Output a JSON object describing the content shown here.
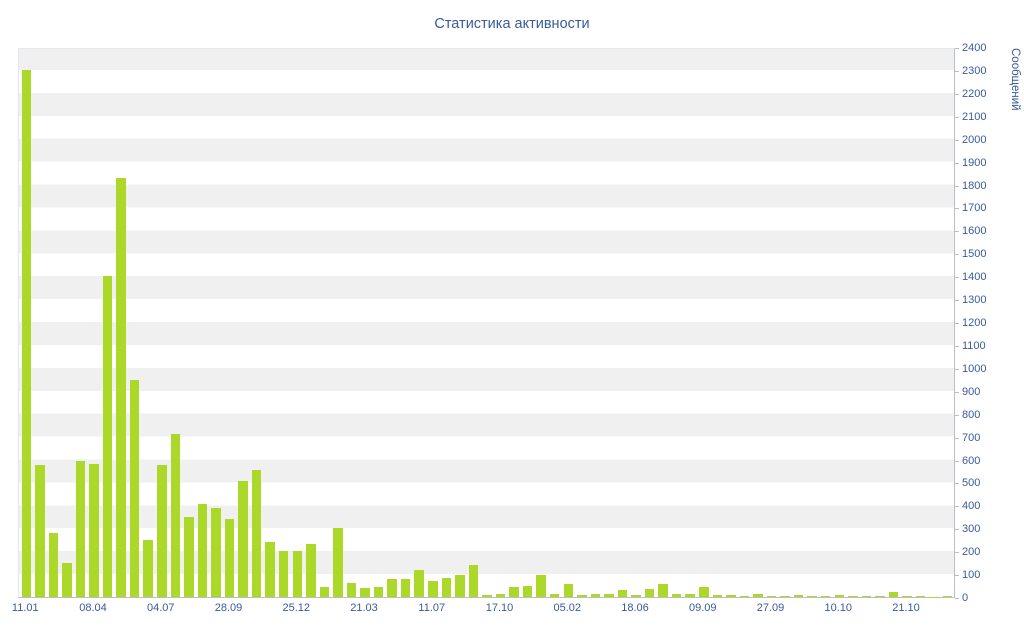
{
  "chart_data": {
    "type": "bar",
    "title": "Статистика активности",
    "ylabel": "Сообщений",
    "xlabel": "",
    "ylim": [
      0,
      2400
    ],
    "ytick_step": 100,
    "x_tick_labels": [
      "11.01",
      "08.04",
      "04.07",
      "28.09",
      "25.12",
      "21.03",
      "11.07",
      "17.10",
      "05.02",
      "18.06",
      "09.09",
      "27.09",
      "10.10",
      "21.10"
    ],
    "x_tick_every": 5,
    "grid": "horizontal-bands-every-100",
    "legend": "none",
    "values": [
      2300,
      575,
      280,
      150,
      595,
      580,
      1400,
      1830,
      945,
      250,
      575,
      710,
      350,
      405,
      390,
      340,
      505,
      555,
      240,
      200,
      200,
      230,
      45,
      300,
      60,
      40,
      45,
      80,
      80,
      120,
      70,
      85,
      95,
      140,
      10,
      15,
      45,
      50,
      95,
      15,
      55,
      10,
      15,
      12,
      30,
      10,
      35,
      55,
      12,
      15,
      45,
      8,
      10,
      6,
      12,
      5,
      6,
      10,
      5,
      4,
      8,
      4,
      5,
      4,
      20,
      4,
      3,
      2,
      3
    ]
  },
  "colors": {
    "bar": "#abd829",
    "text": "#3a5a9c",
    "stripe": "#f0f0f1",
    "axis": "#b9bfc9",
    "background": "#ffffff"
  }
}
